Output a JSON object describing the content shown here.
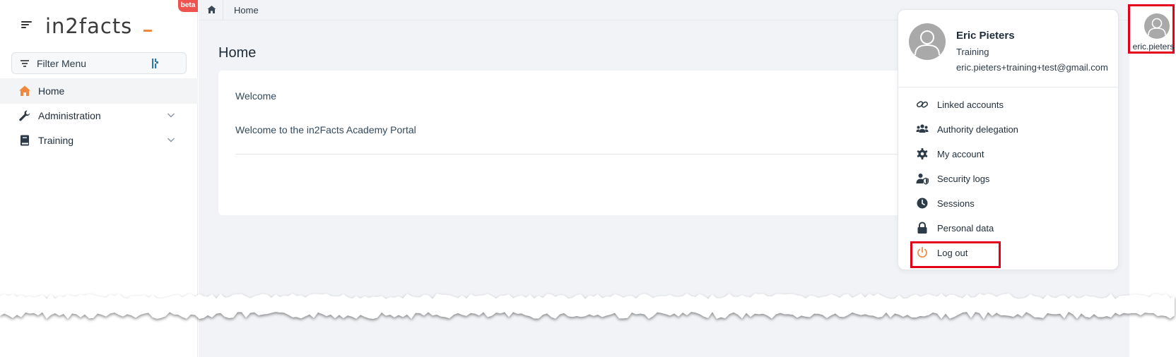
{
  "app": {
    "logo_text": "in2facts",
    "beta_badge": "beta"
  },
  "sidebar": {
    "filter_label": "Filter Menu",
    "items": [
      {
        "label": "Home",
        "icon": "home-icon",
        "active": true
      },
      {
        "label": "Administration",
        "icon": "wrench-icon",
        "expandable": true
      },
      {
        "label": "Training",
        "icon": "book-icon",
        "expandable": true
      }
    ]
  },
  "breadcrumb": {
    "home_icon": "home-icon",
    "current": "Home"
  },
  "main": {
    "page_title": "Home",
    "card": {
      "heading": "Welcome",
      "text": "Welcome to the in2Facts Academy Portal"
    }
  },
  "user": {
    "short_name": "eric.pieters",
    "full_name": "Eric Pieters",
    "role": "Training",
    "email": "eric.pieters+training+test@gmail.com"
  },
  "user_menu": {
    "items": [
      {
        "label": "Linked accounts",
        "icon": "link-icon"
      },
      {
        "label": "Authority delegation",
        "icon": "users-icon"
      },
      {
        "label": "My account",
        "icon": "gear-icon"
      },
      {
        "label": "Security logs",
        "icon": "user-shield-icon"
      },
      {
        "label": "Sessions",
        "icon": "clock-icon"
      },
      {
        "label": "Personal data",
        "icon": "lock-icon"
      },
      {
        "label": "Log out",
        "icon": "power-icon"
      }
    ]
  },
  "colors": {
    "accent_orange": "#f0883e",
    "highlight_red": "#e2001a",
    "beta_red": "#ef5350",
    "avatar_gray": "#a9a9a9",
    "page_bg": "#f1f3f6"
  }
}
